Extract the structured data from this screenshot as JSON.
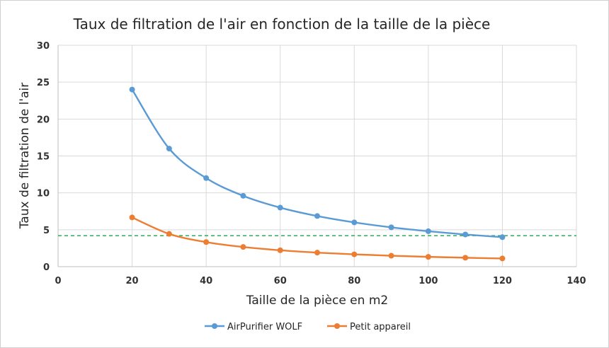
{
  "chart_data": {
    "type": "line",
    "title": "Taux de filtration de l'air en fonction de la taille de la pièce",
    "xlabel": "Taille de la pièce en m2",
    "ylabel": "Taux de filtration de l'air",
    "xlim": [
      0,
      140
    ],
    "ylim": [
      0,
      30
    ],
    "xticks": [
      0,
      20,
      40,
      60,
      80,
      100,
      120,
      140
    ],
    "yticks": [
      0,
      5,
      10,
      15,
      20,
      25,
      30
    ],
    "grid": true,
    "legend_position": "bottom",
    "series": [
      {
        "name": "AirPurifier WOLF",
        "color": "#5b9bd5",
        "x": [
          20,
          30,
          40,
          50,
          60,
          70,
          80,
          90,
          100,
          110,
          120
        ],
        "y": [
          24,
          16,
          12,
          9.6,
          8,
          6.86,
          6,
          5.33,
          4.8,
          4.36,
          4
        ]
      },
      {
        "name": "Petit appareil",
        "color": "#ed7d31",
        "x": [
          20,
          30,
          40,
          50,
          60,
          70,
          80,
          90,
          100,
          110,
          120
        ],
        "y": [
          6.67,
          4.44,
          3.33,
          2.67,
          2.22,
          1.9,
          1.67,
          1.48,
          1.33,
          1.21,
          1.11
        ]
      }
    ],
    "reference_line": {
      "y": 4.2,
      "color": "#1fa34a",
      "style": "dashed"
    }
  }
}
